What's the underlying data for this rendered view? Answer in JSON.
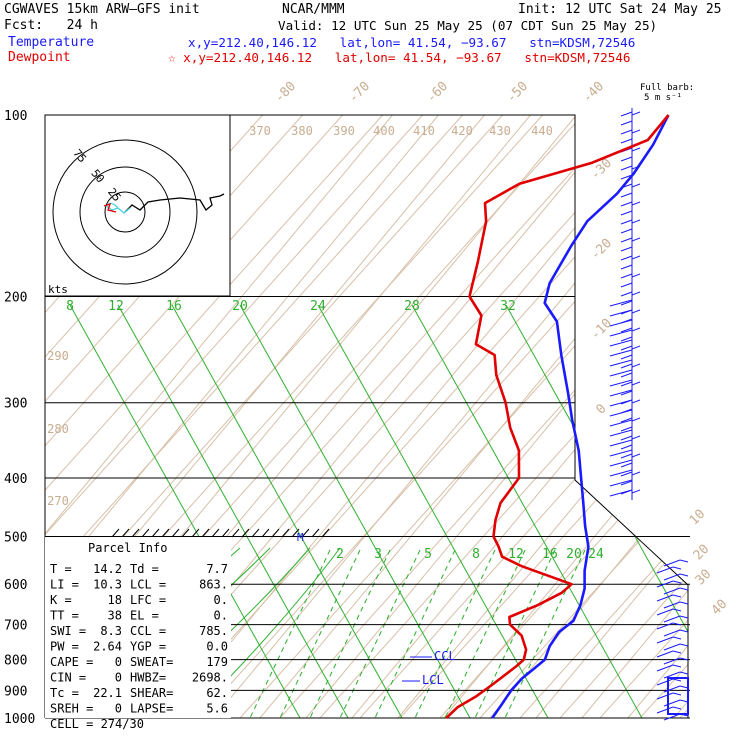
{
  "header": {
    "model": "CGWAVES 15km ARW–GFS init",
    "fcst": "Fcst:   24 h",
    "org": "NCAR/MMM",
    "init": "Init: 12 UTC Sat 24 May 25",
    "valid": "Valid: 12 UTC Sun 25 May 25 (07 CDT Sun 25 May 25)",
    "temp_label": "Temperature",
    "temp_loc": "x,y=212.40,146.12   lat,lon= 41.54, −93.67   stn=KDSM,72546",
    "dew_label": "Dewpoint",
    "dew_loc": "☆ x,y=212.40,146.12   lat,lon= 41.54, −93.67   stn=KDSM,72546",
    "barb_title1": "Full barb:",
    "barb_title2": "5 m s⁻¹"
  },
  "chart_data": {
    "type": "line",
    "title": "Skew-T log-P sounding",
    "ylabel": "",
    "y_scale": "log",
    "ylim": [
      1000,
      100
    ],
    "pressure_ticks": [
      "100",
      "200",
      "300",
      "400",
      "500",
      "600",
      "700",
      "800",
      "900",
      "1000"
    ],
    "isotherm_labels": [
      "-80",
      "-70",
      "-60",
      "-50",
      "-40",
      "-30",
      "-20",
      "-10",
      "0",
      "10",
      "20",
      "30",
      "40"
    ],
    "theta_labels": [
      "370",
      "380",
      "390",
      "400",
      "410",
      "420",
      "430",
      "440",
      "290",
      "280",
      "270"
    ],
    "mixing_ratio_labels": [
      "8",
      "12",
      "16",
      "20",
      "24",
      "28",
      "32",
      "2",
      "3",
      "5",
      "8",
      "12",
      "16",
      "20",
      "24"
    ],
    "series": [
      {
        "name": "Temperature",
        "color": "#1a1aff",
        "points": [
          [
            1000,
            10.5
          ],
          [
            950,
            10.1
          ],
          [
            900,
            9.6
          ],
          [
            860,
            9.8
          ],
          [
            830,
            10.6
          ],
          [
            800,
            11.4
          ],
          [
            760,
            10.0
          ],
          [
            720,
            9.5
          ],
          [
            690,
            10.6
          ],
          [
            650,
            9.3
          ],
          [
            610,
            7.2
          ],
          [
            570,
            4.0
          ],
          [
            520,
            0.5
          ],
          [
            480,
            -4.0
          ],
          [
            440,
            -8.5
          ],
          [
            400,
            -13.5
          ],
          [
            360,
            -19.0
          ],
          [
            320,
            -26.0
          ],
          [
            290,
            -31.5
          ],
          [
            250,
            -40.0
          ],
          [
            220,
            -47.0
          ],
          [
            205,
            -53.0
          ],
          [
            190,
            -55.5
          ],
          [
            165,
            -57.5
          ],
          [
            150,
            -58.5
          ],
          [
            135,
            -57.0
          ],
          [
            125,
            -57.0
          ],
          [
            112,
            -58.0
          ],
          [
            100,
            -60.0
          ]
        ]
      },
      {
        "name": "Dewpoint",
        "color": "#e00000",
        "points": [
          [
            1000,
            0.5
          ],
          [
            960,
            1.0
          ],
          [
            920,
            3.1
          ],
          [
            880,
            4.5
          ],
          [
            820,
            6.4
          ],
          [
            800,
            6.8
          ],
          [
            770,
            5.5
          ],
          [
            730,
            2.0
          ],
          [
            700,
            -2.5
          ],
          [
            680,
            -4.0
          ],
          [
            650,
            0.0
          ],
          [
            620,
            3.0
          ],
          [
            600,
            3.6
          ],
          [
            560,
            -10.5
          ],
          [
            540,
            -16.5
          ],
          [
            520,
            -19.0
          ],
          [
            500,
            -22.0
          ],
          [
            470,
            -24.5
          ],
          [
            440,
            -26.5
          ],
          [
            400,
            -27.0
          ],
          [
            360,
            -32.0
          ],
          [
            330,
            -38.0
          ],
          [
            300,
            -43.5
          ],
          [
            270,
            -50.5
          ],
          [
            250,
            -54.5
          ],
          [
            240,
            -60.5
          ],
          [
            215,
            -64.5
          ],
          [
            200,
            -70.5
          ],
          [
            175,
            -75.0
          ],
          [
            150,
            -80.5
          ],
          [
            140,
            -84.0
          ],
          [
            130,
            -80.0
          ],
          [
            120,
            -68.0
          ],
          [
            110,
            -60.0
          ],
          [
            100,
            -60.0
          ]
        ]
      }
    ],
    "levels": {
      "ccl": "CCL",
      "lcl": "LCL",
      "m_marker": "M"
    },
    "hodograph": {
      "rings": [
        "25",
        "50",
        "75"
      ],
      "unit": "kts"
    }
  },
  "parcel_info": {
    "title": "Parcel Info",
    "rows": [
      [
        "T   =",
        "14.2",
        "Td =",
        "7.7"
      ],
      [
        "LI  =",
        "10.3",
        "LCL =",
        "863."
      ],
      [
        "K   =",
        "18",
        "LFC =",
        "0."
      ],
      [
        "TT  =",
        "38",
        "EL  =",
        "0."
      ],
      [
        "SWI =",
        "8.3",
        "CCL =",
        "785."
      ],
      [
        "PW  =",
        "2.64",
        "YGP =",
        "0.0"
      ],
      [
        "CAPE =",
        "0",
        "SWEAT=",
        "179"
      ],
      [
        "CIN  =",
        "0",
        "HWBZ=",
        "2698."
      ],
      [
        "Tc  =",
        "22.1",
        "SHEAR=",
        "62."
      ],
      [
        "SREH =",
        "0",
        "LAPSE=",
        "5.6"
      ]
    ],
    "cell": "CELL = 274/30"
  }
}
